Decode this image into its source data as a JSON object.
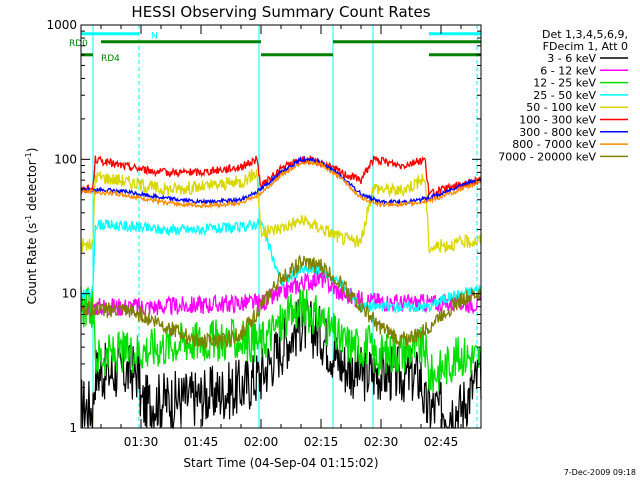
{
  "chart_data": {
    "type": "line",
    "title": "HESSI Observing Summary Count Rates",
    "xlabel": "Start Time (04-Sep-04 01:15:02)",
    "ylabel_main": "Count Rate (s",
    "ylabel_sup1": "-1",
    "ylabel_mid": " detector",
    "ylabel_sup2": "-1",
    "ylabel_end": ")",
    "yscale": "log",
    "ylim": [
      1,
      1000
    ],
    "x_unit": "minutes after 01:15:02",
    "xlim": [
      0,
      100
    ],
    "x_ticks": [
      {
        "value": 15,
        "label": "01:30"
      },
      {
        "value": 30,
        "label": "01:45"
      },
      {
        "value": 45,
        "label": "02:00"
      },
      {
        "value": 60,
        "label": "02:15"
      },
      {
        "value": 75,
        "label": "02:30"
      },
      {
        "value": 90,
        "label": "02:45"
      }
    ],
    "y_ticks": [
      {
        "value": 1,
        "label": "1"
      },
      {
        "value": 10,
        "label": "10"
      },
      {
        "value": 100,
        "label": "100"
      },
      {
        "value": 1000,
        "label": "1000"
      }
    ],
    "legend_header": [
      "Det 1,3,4,5,6,9,",
      "FDecim 1, Att 0"
    ],
    "legend_position": "right",
    "series": [
      {
        "name": "3 - 6 keV",
        "color": "#000000",
        "x": [
          0,
          3,
          3.5,
          14.5,
          15,
          20,
          30,
          40,
          45,
          50,
          55,
          60,
          65,
          70,
          73,
          74,
          85,
          86,
          95,
          100
        ],
        "y": [
          1.5,
          1.4,
          2.6,
          2.6,
          1.5,
          1.6,
          1.7,
          2,
          2.5,
          4,
          6,
          5,
          3,
          2.5,
          2.6,
          2.6,
          2.4,
          1.4,
          1.4,
          2.6
        ]
      },
      {
        "name": "6 - 12 keV",
        "color": "#ff00ff",
        "x": [
          0,
          3,
          20,
          40,
          45,
          50,
          55,
          60,
          65,
          70,
          80,
          90,
          95,
          100
        ],
        "y": [
          8,
          8,
          8,
          8.5,
          8.5,
          10,
          12,
          13,
          10,
          9,
          8.5,
          8.5,
          8.5,
          8.5
        ]
      },
      {
        "name": "12 - 25 keV",
        "color": "#00e000",
        "x": [
          0,
          3,
          3.5,
          15,
          25,
          35,
          40,
          45,
          50,
          55,
          60,
          65,
          70,
          72,
          73,
          80,
          86,
          87,
          95,
          100
        ],
        "y": [
          8,
          8,
          3.4,
          3.8,
          4.4,
          4.5,
          4.5,
          4.4,
          6,
          8,
          6.5,
          4.4,
          4,
          4.2,
          3.5,
          3.7,
          4,
          2.4,
          3.5,
          3.3
        ]
      },
      {
        "name": "25 - 50 keV",
        "color": "#00ffff",
        "x": [
          0,
          3,
          3.5,
          10,
          20,
          30,
          40,
          45,
          50,
          55,
          60,
          65,
          70,
          73,
          80,
          87,
          90,
          95,
          100
        ],
        "y": [
          10,
          10,
          33,
          32,
          30,
          30,
          31,
          34,
          12,
          15,
          15,
          12,
          8,
          8,
          8,
          8,
          9,
          10,
          11
        ]
      },
      {
        "name": "50 - 100 keV",
        "color": "#d8d800",
        "x": [
          0,
          3,
          3.5,
          10,
          20,
          30,
          40,
          44,
          45,
          50,
          55,
          60,
          65,
          70,
          73,
          80,
          86,
          87,
          95,
          100
        ],
        "y": [
          23,
          23,
          75,
          70,
          60,
          62,
          68,
          80,
          28,
          31,
          35,
          31,
          26,
          24,
          62,
          58,
          73,
          22,
          24,
          25
        ]
      },
      {
        "name": "100 - 300 keV",
        "color": "#ff0000",
        "x": [
          0,
          3,
          3.5,
          10,
          20,
          30,
          40,
          44,
          45,
          50,
          55,
          60,
          65,
          70,
          73,
          80,
          86,
          87,
          95,
          100
        ],
        "y": [
          60,
          60,
          100,
          90,
          80,
          80,
          88,
          100,
          62,
          85,
          100,
          95,
          80,
          70,
          100,
          90,
          100,
          55,
          65,
          70
        ]
      },
      {
        "name": "300 - 800 keV",
        "color": "#0000ff",
        "x": [
          0,
          10,
          20,
          30,
          40,
          45,
          50,
          55,
          60,
          65,
          70,
          75,
          80,
          85,
          90,
          95,
          100
        ],
        "y": [
          60,
          58,
          52,
          48,
          50,
          60,
          80,
          100,
          95,
          75,
          55,
          48,
          48,
          50,
          55,
          65,
          70
        ]
      },
      {
        "name": "800 - 7000 keV",
        "color": "#ff8c00",
        "x": [
          0,
          10,
          20,
          30,
          40,
          45,
          50,
          55,
          60,
          65,
          70,
          75,
          80,
          85,
          90,
          95,
          100
        ],
        "y": [
          58,
          55,
          48,
          45,
          47,
          56,
          76,
          95,
          92,
          72,
          52,
          46,
          46,
          48,
          52,
          60,
          68
        ]
      },
      {
        "name": "7000 - 20000 keV",
        "color": "#808000",
        "x": [
          0,
          5,
          10,
          15,
          20,
          25,
          30,
          35,
          40,
          45,
          50,
          55,
          60,
          65,
          70,
          75,
          80,
          85,
          90,
          95,
          100
        ],
        "y": [
          8,
          7.5,
          7.5,
          7,
          6,
          5,
          4.4,
          4.4,
          5,
          8,
          13,
          17,
          16,
          12,
          8,
          5.5,
          4.5,
          5,
          7,
          9,
          10
        ]
      }
    ],
    "annotations": [
      {
        "label": "RD0",
        "color": "#008000",
        "level": 750
      },
      {
        "label": "RD4",
        "color": "#008000",
        "level": 580
      },
      {
        "label": "N",
        "color": "#00ffff",
        "level": 850
      }
    ],
    "flag_bars": [
      {
        "color": "#00ffff",
        "level": 860,
        "intervals": [
          [
            0,
            14.5
          ],
          [
            87,
            100
          ]
        ]
      },
      {
        "color": "#008000",
        "level": 750,
        "intervals": [
          [
            5,
            45
          ],
          [
            63,
            100
          ]
        ]
      },
      {
        "color": "#008000",
        "level": 600,
        "intervals": [
          [
            0,
            3
          ],
          [
            45,
            63
          ],
          [
            87,
            100
          ]
        ]
      }
    ],
    "vertical_lines": [
      {
        "x": 3,
        "color": "#00ffff",
        "style": "solid"
      },
      {
        "x": 14.5,
        "color": "#00ffff",
        "style": "dashed"
      },
      {
        "x": 44.5,
        "color": "#00ffff",
        "style": "solid"
      },
      {
        "x": 63,
        "color": "#00ffff",
        "style": "solid"
      },
      {
        "x": 73,
        "color": "#00ffff",
        "style": "solid"
      },
      {
        "x": 99,
        "color": "#00ffff",
        "style": "dashed"
      }
    ],
    "stamp": "7-Dec-2009 09:18"
  }
}
